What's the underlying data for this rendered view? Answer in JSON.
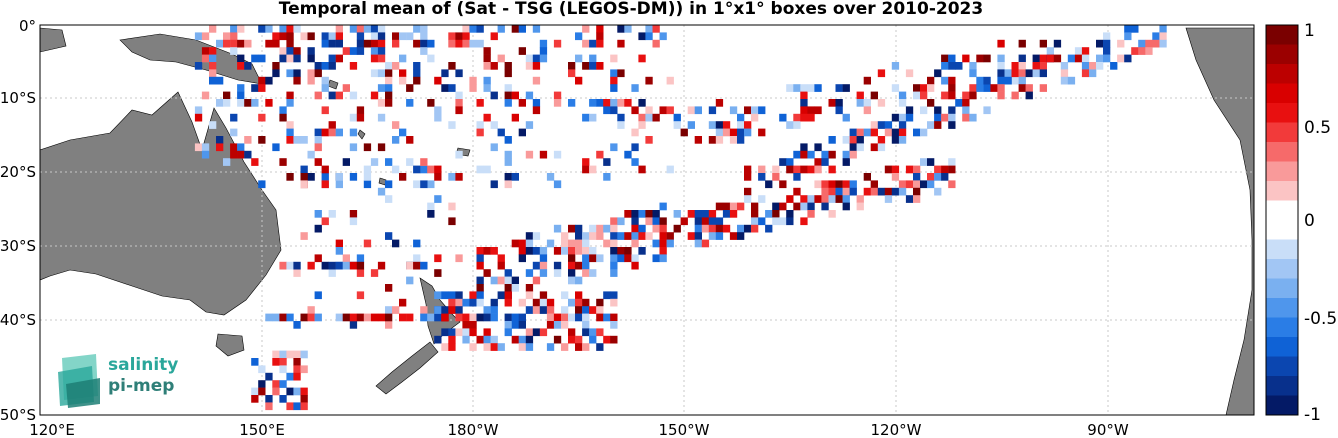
{
  "title": "Temporal mean of (Sat - TSG (LEGOS-DM)) in 1°x1° boxes over 2010-2023",
  "lat_ticks": [
    "0°",
    "10°S",
    "20°S",
    "30°S",
    "40°S",
    "50°S"
  ],
  "lon_ticks": [
    "120°E",
    "150°E",
    "180°W",
    "150°W",
    "120°W",
    "90°W"
  ],
  "colorbar": {
    "range": [
      -1,
      1
    ],
    "tick_labels": [
      "1",
      "0.5",
      "0",
      "-0.5",
      "-1"
    ],
    "colors_top_to_bottom": [
      "#7a0000",
      "#9b0000",
      "#bc0000",
      "#d90000",
      "#e81010",
      "#f23a3a",
      "#f66a6a",
      "#f99a9a",
      "#fbc4c4",
      "#ffffff",
      "#ffffff",
      "#c9def8",
      "#a2c6f4",
      "#7ab0f0",
      "#4f96ec",
      "#2a7de6",
      "#0f62d6",
      "#0b46b0",
      "#08308c",
      "#041a66"
    ]
  },
  "logo": {
    "line1": "salinity",
    "line2": "pi-mep"
  },
  "colors": {
    "land": "#808080",
    "grid": "#c8c8c8",
    "background": "#ffffff"
  }
}
